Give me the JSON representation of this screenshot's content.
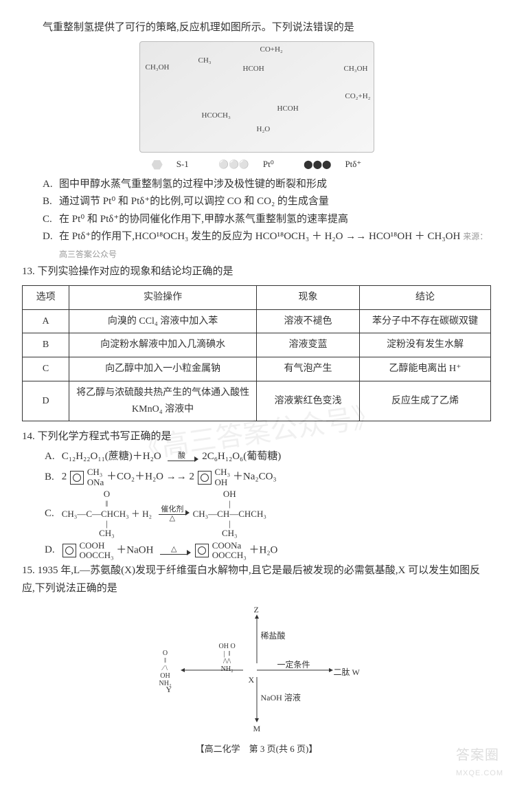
{
  "intro": "气重整制氢提供了可行的策略,反应机理如图所示。下列说法错误的是",
  "diagram_labels": {
    "top_left": "CH₃OH",
    "top_mid": "CH₃",
    "top_co_h2": "CO+H₂",
    "hcoh": "HCOH",
    "ch3oh_r": "CH₃OH",
    "co2_h2": "CO₂+H₂",
    "hcooch3": "HCOCH₃",
    "hcoh2": "HCOH",
    "h2o": "H₂O"
  },
  "legend": {
    "s1": "S-1",
    "pt0": "Pt⁰",
    "ptd": "Ptδ⁺"
  },
  "q12_options": {
    "A": "图中甲醇水蒸气重整制氢的过程中涉及极性键的断裂和形成",
    "B": "通过调节 Pt⁰ 和 Ptδ⁺的比例,可以调控 CO 和 CO₂ 的生成含量",
    "C": "在 Pt⁰ 和 Ptδ⁺的协同催化作用下,甲醇水蒸气重整制氢的速率提高",
    "D": "在 Ptδ⁺的作用下,HCO¹⁸OCH₃ 发生的反应为 HCO¹⁸OCH₃ ＋ H₂O →→ HCO¹⁸OH ＋ CH₃OH",
    "D_source": "来源：高三答案公众号"
  },
  "q13": {
    "stem": "13. 下列实验操作对应的现象和结论均正确的是",
    "headers": [
      "选项",
      "实验操作",
      "现象",
      "结论"
    ],
    "rows": [
      [
        "A",
        "向溴的 CCl₄ 溶液中加入苯",
        "溶液不褪色",
        "苯分子中不存在碳碳双键"
      ],
      [
        "B",
        "向淀粉水解液中加入几滴碘水",
        "溶液变蓝",
        "淀粉没有发生水解"
      ],
      [
        "C",
        "向乙醇中加入一小粒金属钠",
        "有气泡产生",
        "乙醇能电离出 H⁺"
      ],
      [
        "D",
        "将乙醇与浓硫酸共热产生的气体通入酸性 KMnO₄ 溶液中",
        "溶液紫红色变浅",
        "反应生成了乙烯"
      ]
    ],
    "colwidths": [
      "10%",
      "40%",
      "22%",
      "28%"
    ],
    "border_color": "#333333"
  },
  "q14": {
    "stem": "14. 下列化学方程式书写正确的是",
    "A": {
      "lhs": "C₁₂H₂₂O₁₁(蔗糖)＋H₂O",
      "arrow_top": "酸",
      "rhs": "2C₆H₁₂O₆(葡萄糖)"
    },
    "B": {
      "coef_l": "2",
      "ring_sub_l_top": "CH₃",
      "ring_sub_l_bot": "ONa",
      "mid": "＋CO₂＋H₂O →→ 2",
      "ring_sub_r_top": "CH₃",
      "ring_sub_r_bot": "OH",
      "tail": "＋Na₂CO₃"
    },
    "C": {
      "lhs_top": "O",
      "lhs_main": "CH₃—C—CHCH₃ ＋ H₂",
      "lhs_bot": "CH₃",
      "arrow_top": "催化剂",
      "arrow_bot": "△",
      "rhs_top": "OH",
      "rhs_main": "CH₃—CH—CHCH₃",
      "rhs_bot": "CH₃"
    },
    "D": {
      "ring_l_top": "COOH",
      "ring_l_bot": "OOCCH₃",
      "mid": "＋NaOH",
      "arrow_top": "△",
      "ring_r_top": "COONa",
      "ring_r_bot": "OOCCH₃",
      "tail": "＋H₂O"
    }
  },
  "q15": {
    "stem": "15. 1935 年,L—苏氨酸(X)发现于纤维蛋白水解物中,且它是最后被发现的必需氨基酸,X 可以发生如图反应,下列说法正确的是",
    "labels": {
      "Z": "Z",
      "dilute": "稀盐酸",
      "cond": "一定条件",
      "W": "二肽 W",
      "NaOH": "NaOH 溶液",
      "M": "M",
      "Y": "Y",
      "X": "X",
      "Y_struct_top": "O",
      "Y_struct_mid": "OH",
      "Y_struct_nh2": "NH₂",
      "X_struct_oh": "OH",
      "X_struct_o": "O",
      "X_struct_nh2": "NH₂"
    }
  },
  "footer": "【高二化学　第 3 页(共 6 页)】",
  "watermarks": {
    "corner_top": "答案圈",
    "corner_bot": "MXQE.COM",
    "mid": "《高三答案公众号》",
    "small": "高三答案"
  },
  "style": {
    "accent": "#333333",
    "bg": "#ffffff"
  }
}
